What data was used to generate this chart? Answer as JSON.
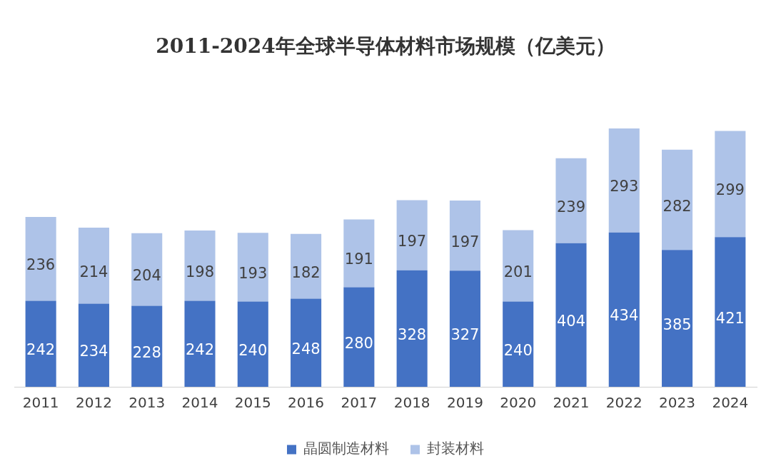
{
  "chart_data": {
    "type": "bar",
    "title": "2011-2024年全球半导体材料市场规模（亿美元）",
    "categories": [
      "2011",
      "2012",
      "2013",
      "2014",
      "2015",
      "2016",
      "2017",
      "2018",
      "2019",
      "2020",
      "2021",
      "2022",
      "2023",
      "2024"
    ],
    "series": [
      {
        "name": "晶圆制造材料",
        "color": "#4472c4",
        "values": [
          242,
          234,
          228,
          242,
          240,
          248,
          280,
          328,
          327,
          240,
          404,
          434,
          385,
          421
        ]
      },
      {
        "name": "封装材料",
        "color": "#aec3e8",
        "values": [
          236,
          214,
          204,
          198,
          193,
          182,
          191,
          197,
          197,
          201,
          239,
          293,
          282,
          299
        ]
      }
    ],
    "stacked": true,
    "data_labels": true,
    "legend": "bottom",
    "tick_labels": "x"
  }
}
